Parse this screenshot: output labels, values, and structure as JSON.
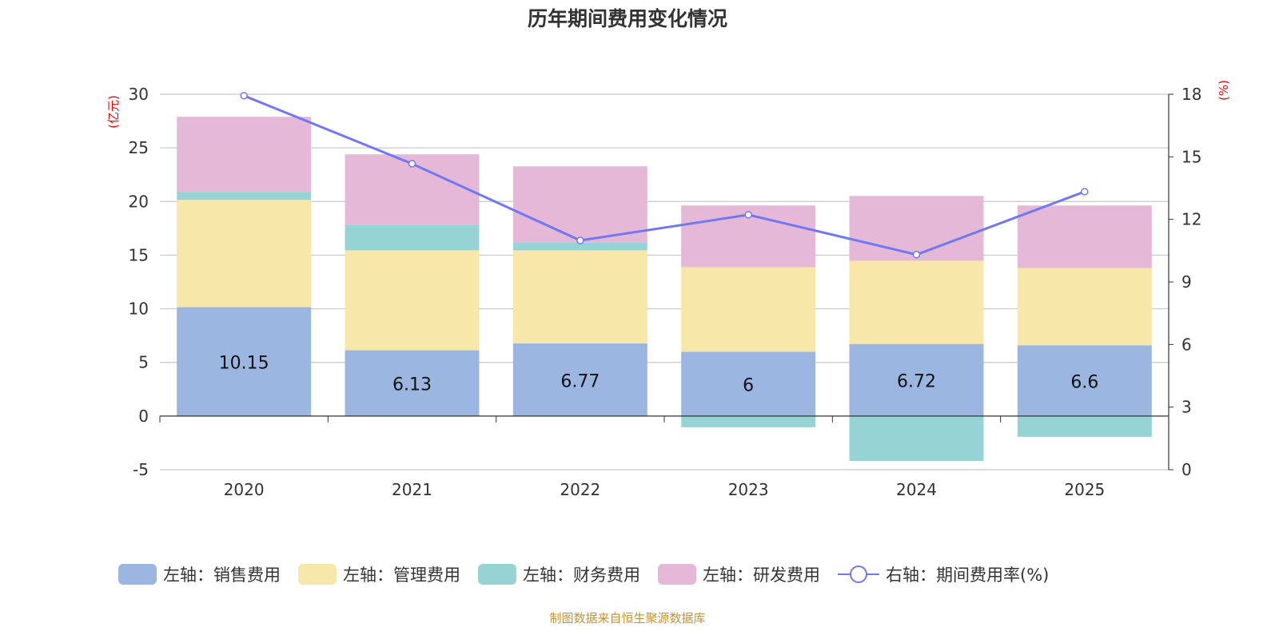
{
  "chart_data": {
    "type": "bar",
    "title": "历年期间费用变化情况",
    "categories": [
      "2020",
      "2021",
      "2022",
      "2023",
      "2024",
      "2025"
    ],
    "ylabel_left": "(亿元)",
    "ylabel_right": "(%)",
    "ylim_left": [
      -5,
      30
    ],
    "yticks_left": [
      -5,
      0,
      5,
      10,
      15,
      20,
      25,
      30
    ],
    "ylim_right": [
      0,
      18
    ],
    "yticks_right": [
      0,
      3,
      6,
      9,
      12,
      15,
      18
    ],
    "grid": true,
    "legend_position": "bottom",
    "series": [
      {
        "name": "左轴：销售费用",
        "type": "bar",
        "axis": "left",
        "color": "#9bb6e0",
        "values": [
          10.15,
          6.13,
          6.77,
          6,
          6.72,
          6.6
        ],
        "labels": [
          "10.15",
          "6.13",
          "6.77",
          "6",
          "6.72",
          "6.6"
        ]
      },
      {
        "name": "左轴：管理费用",
        "type": "bar",
        "axis": "left",
        "color": "#f7e7a9",
        "values": [
          10.0,
          9.32,
          8.68,
          7.88,
          7.76,
          7.2
        ]
      },
      {
        "name": "左轴：财务费用",
        "type": "bar",
        "axis": "left",
        "color": "#96d3d4",
        "values": [
          0.75,
          2.39,
          0.75,
          -1.04,
          -4.18,
          -1.94
        ]
      },
      {
        "name": "左轴：研发费用",
        "type": "bar",
        "axis": "left",
        "color": "#e6b8d8",
        "values": [
          7.0,
          6.56,
          7.08,
          5.75,
          6.04,
          5.83
        ]
      },
      {
        "name": "右轴：期间费用率(%)",
        "type": "line",
        "axis": "right",
        "color": "#7278f0",
        "values": [
          17.93,
          14.67,
          10.99,
          12.22,
          10.31,
          13.33
        ]
      }
    ]
  },
  "source": "制图数据来自恒生聚源数据库"
}
